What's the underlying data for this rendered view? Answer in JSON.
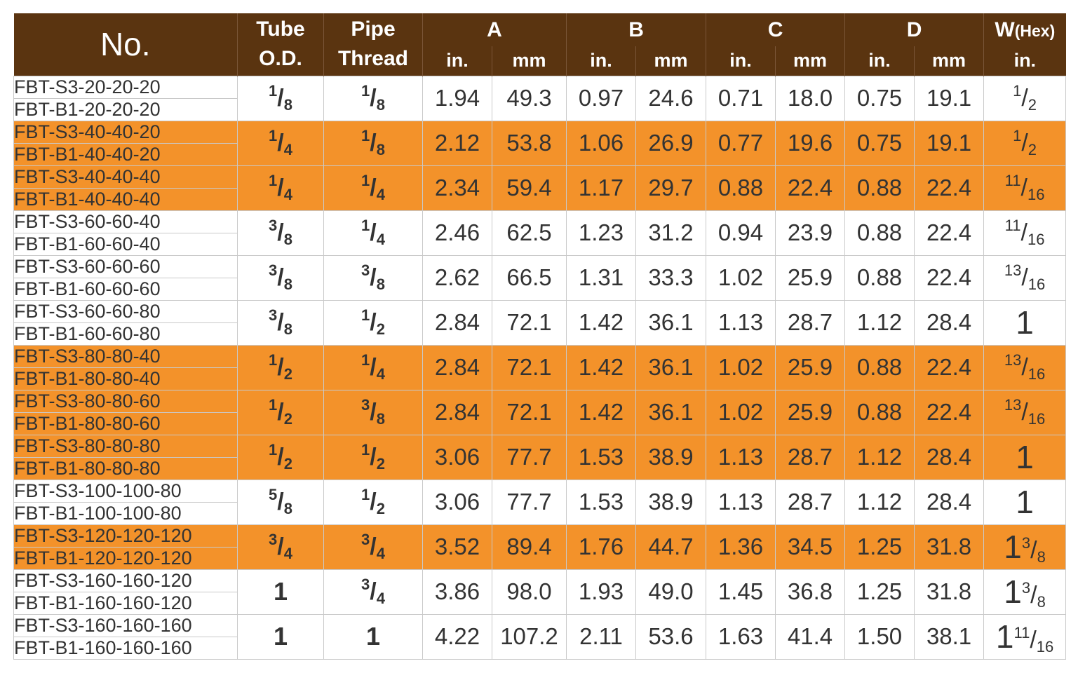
{
  "header": {
    "no": "No.",
    "tube_line1": "Tube",
    "tube_line2": "O.D.",
    "pipe_line1": "Pipe",
    "pipe_line2": "Thread",
    "a": "A",
    "b": "B",
    "c": "C",
    "d": "D",
    "w_main": "W",
    "w_sub": "(Hex)",
    "unit_in": "in.",
    "unit_mm": "mm"
  },
  "rows": [
    {
      "m1": "FBT-S3-20-20-20",
      "m2": "FBT-B1-20-20-20",
      "tube": {
        "n": "1",
        "d": "8"
      },
      "pipe": {
        "n": "1",
        "d": "8"
      },
      "a_in": "1.94",
      "a_mm": "49.3",
      "b_in": "0.97",
      "b_mm": "24.6",
      "c_in": "0.71",
      "c_mm": "18.0",
      "d_in": "0.75",
      "d_mm": "19.1",
      "w": {
        "n": "1",
        "d": "2"
      },
      "color": "white"
    },
    {
      "m1": "FBT-S3-40-40-20",
      "m2": "FBT-B1-40-40-20",
      "tube": {
        "n": "1",
        "d": "4"
      },
      "pipe": {
        "n": "1",
        "d": "8"
      },
      "a_in": "2.12",
      "a_mm": "53.8",
      "b_in": "1.06",
      "b_mm": "26.9",
      "c_in": "0.77",
      "c_mm": "19.6",
      "d_in": "0.75",
      "d_mm": "19.1",
      "w": {
        "n": "1",
        "d": "2"
      },
      "color": "orange"
    },
    {
      "m1": "FBT-S3-40-40-40",
      "m2": "FBT-B1-40-40-40",
      "tube": {
        "n": "1",
        "d": "4"
      },
      "pipe": {
        "n": "1",
        "d": "4"
      },
      "a_in": "2.34",
      "a_mm": "59.4",
      "b_in": "1.17",
      "b_mm": "29.7",
      "c_in": "0.88",
      "c_mm": "22.4",
      "d_in": "0.88",
      "d_mm": "22.4",
      "w": {
        "n": "11",
        "d": "16"
      },
      "color": "orange"
    },
    {
      "m1": "FBT-S3-60-60-40",
      "m2": "FBT-B1-60-60-40",
      "tube": {
        "n": "3",
        "d": "8"
      },
      "pipe": {
        "n": "1",
        "d": "4"
      },
      "a_in": "2.46",
      "a_mm": "62.5",
      "b_in": "1.23",
      "b_mm": "31.2",
      "c_in": "0.94",
      "c_mm": "23.9",
      "d_in": "0.88",
      "d_mm": "22.4",
      "w": {
        "n": "11",
        "d": "16"
      },
      "color": "white"
    },
    {
      "m1": "FBT-S3-60-60-60",
      "m2": "FBT-B1-60-60-60",
      "tube": {
        "n": "3",
        "d": "8"
      },
      "pipe": {
        "n": "3",
        "d": "8"
      },
      "a_in": "2.62",
      "a_mm": "66.5",
      "b_in": "1.31",
      "b_mm": "33.3",
      "c_in": "1.02",
      "c_mm": "25.9",
      "d_in": "0.88",
      "d_mm": "22.4",
      "w": {
        "n": "13",
        "d": "16"
      },
      "color": "white"
    },
    {
      "m1": "FBT-S3-60-60-80",
      "m2": "FBT-B1-60-60-80",
      "tube": {
        "n": "3",
        "d": "8"
      },
      "pipe": {
        "n": "1",
        "d": "2"
      },
      "a_in": "2.84",
      "a_mm": "72.1",
      "b_in": "1.42",
      "b_mm": "36.1",
      "c_in": "1.13",
      "c_mm": "28.7",
      "d_in": "1.12",
      "d_mm": "28.4",
      "w": {
        "whole": "1"
      },
      "color": "white"
    },
    {
      "m1": "FBT-S3-80-80-40",
      "m2": "FBT-B1-80-80-40",
      "tube": {
        "n": "1",
        "d": "2"
      },
      "pipe": {
        "n": "1",
        "d": "4"
      },
      "a_in": "2.84",
      "a_mm": "72.1",
      "b_in": "1.42",
      "b_mm": "36.1",
      "c_in": "1.02",
      "c_mm": "25.9",
      "d_in": "0.88",
      "d_mm": "22.4",
      "w": {
        "n": "13",
        "d": "16"
      },
      "color": "orange"
    },
    {
      "m1": "FBT-S3-80-80-60",
      "m2": "FBT-B1-80-80-60",
      "tube": {
        "n": "1",
        "d": "2"
      },
      "pipe": {
        "n": "3",
        "d": "8"
      },
      "a_in": "2.84",
      "a_mm": "72.1",
      "b_in": "1.42",
      "b_mm": "36.1",
      "c_in": "1.02",
      "c_mm": "25.9",
      "d_in": "0.88",
      "d_mm": "22.4",
      "w": {
        "n": "13",
        "d": "16"
      },
      "color": "orange"
    },
    {
      "m1": "FBT-S3-80-80-80",
      "m2": "FBT-B1-80-80-80",
      "tube": {
        "n": "1",
        "d": "2"
      },
      "pipe": {
        "n": "1",
        "d": "2"
      },
      "a_in": "3.06",
      "a_mm": "77.7",
      "b_in": "1.53",
      "b_mm": "38.9",
      "c_in": "1.13",
      "c_mm": "28.7",
      "d_in": "1.12",
      "d_mm": "28.4",
      "w": {
        "whole": "1"
      },
      "color": "orange"
    },
    {
      "m1": "FBT-S3-100-100-80",
      "m2": "FBT-B1-100-100-80",
      "tube": {
        "n": "5",
        "d": "8"
      },
      "pipe": {
        "n": "1",
        "d": "2"
      },
      "a_in": "3.06",
      "a_mm": "77.7",
      "b_in": "1.53",
      "b_mm": "38.9",
      "c_in": "1.13",
      "c_mm": "28.7",
      "d_in": "1.12",
      "d_mm": "28.4",
      "w": {
        "whole": "1"
      },
      "color": "white"
    },
    {
      "m1": "FBT-S3-120-120-120",
      "m2": "FBT-B1-120-120-120",
      "tube": {
        "n": "3",
        "d": "4"
      },
      "pipe": {
        "n": "3",
        "d": "4"
      },
      "a_in": "3.52",
      "a_mm": "89.4",
      "b_in": "1.76",
      "b_mm": "44.7",
      "c_in": "1.36",
      "c_mm": "34.5",
      "d_in": "1.25",
      "d_mm": "31.8",
      "w": {
        "whole": "1",
        "n": "3",
        "d": "8"
      },
      "color": "orange"
    },
    {
      "m1": "FBT-S3-160-160-120",
      "m2": "FBT-B1-160-160-120",
      "tube": {
        "whole": "1"
      },
      "pipe": {
        "n": "3",
        "d": "4"
      },
      "a_in": "3.86",
      "a_mm": "98.0",
      "b_in": "1.93",
      "b_mm": "49.0",
      "c_in": "1.45",
      "c_mm": "36.8",
      "d_in": "1.25",
      "d_mm": "31.8",
      "w": {
        "whole": "1",
        "n": "3",
        "d": "8"
      },
      "color": "white"
    },
    {
      "m1": "FBT-S3-160-160-160",
      "m2": "FBT-B1-160-160-160",
      "tube": {
        "whole": "1"
      },
      "pipe": {
        "whole": "1"
      },
      "a_in": "4.22",
      "a_mm": "107.2",
      "b_in": "2.11",
      "b_mm": "53.6",
      "c_in": "1.63",
      "c_mm": "41.4",
      "d_in": "1.50",
      "d_mm": "38.1",
      "w": {
        "whole": "1",
        "n": "11",
        "d": "16"
      },
      "color": "white"
    }
  ],
  "colors": {
    "header_bg": "#5a3410",
    "row_orange": "#f3922a",
    "row_white": "#ffffff",
    "text": "#333333"
  }
}
